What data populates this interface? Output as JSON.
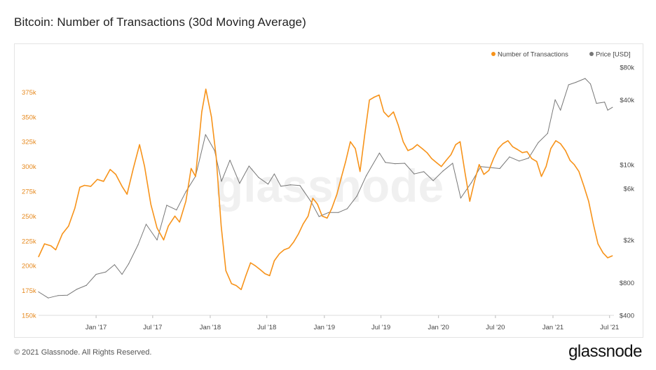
{
  "title": "Bitcoin: Number of Transactions (30d Moving Average)",
  "footer": {
    "copyright": "© 2021 Glassnode. All Rights Reserved.",
    "brand": "glassnode"
  },
  "watermark": "glassnode",
  "colors": {
    "transactions": "#F7931A",
    "price": "#777777",
    "left_axis_text": "#E6891E"
  },
  "chart_data": {
    "type": "line",
    "title": "Bitcoin: Number of Transactions (30d Moving Average)",
    "legend": {
      "position": "top-right",
      "entries": [
        "Number of Transactions",
        "Price [USD]"
      ]
    },
    "x_ticks": [
      "Jan '17",
      "Jul '17",
      "Jan '18",
      "Jul '18",
      "Jan '19",
      "Jul '19",
      "Jan '20",
      "Jul '20",
      "Jan '21",
      "Jul '21"
    ],
    "x_tick_dates": [
      "2017-01-01",
      "2017-07-01",
      "2018-01-01",
      "2018-07-01",
      "2019-01-01",
      "2019-07-01",
      "2020-01-01",
      "2020-07-01",
      "2021-01-01",
      "2021-07-01"
    ],
    "xlim": [
      "2016-07-01",
      "2021-07-15"
    ],
    "left_axis": {
      "scale": "linear",
      "ylim": [
        150000,
        400000
      ],
      "ticks": [
        150000,
        175000,
        200000,
        225000,
        250000,
        275000,
        300000,
        325000,
        350000,
        375000
      ],
      "tick_labels": [
        "150k",
        "175k",
        "200k",
        "225k",
        "250k",
        "275k",
        "300k",
        "325k",
        "350k",
        "375k"
      ]
    },
    "right_axis": {
      "scale": "log",
      "ylim": [
        400,
        80000
      ],
      "ticks": [
        400,
        800,
        2000,
        6000,
        10000,
        40000,
        80000
      ],
      "tick_labels": [
        "$400",
        "$800",
        "$2k",
        "$6k",
        "$10k",
        "$40k",
        "$80k"
      ]
    },
    "series": [
      {
        "name": "Number of Transactions",
        "axis": "left",
        "points": [
          [
            "2016-07-01",
            209000
          ],
          [
            "2016-07-20",
            222000
          ],
          [
            "2016-08-10",
            220000
          ],
          [
            "2016-08-25",
            216000
          ],
          [
            "2016-09-15",
            232000
          ],
          [
            "2016-10-05",
            240000
          ],
          [
            "2016-10-25",
            258000
          ],
          [
            "2016-11-10",
            279000
          ],
          [
            "2016-11-25",
            281000
          ],
          [
            "2016-12-15",
            280000
          ],
          [
            "2017-01-05",
            287000
          ],
          [
            "2017-01-25",
            285000
          ],
          [
            "2017-02-15",
            297000
          ],
          [
            "2017-03-05",
            292000
          ],
          [
            "2017-03-25",
            280000
          ],
          [
            "2017-04-10",
            272000
          ],
          [
            "2017-04-30",
            298000
          ],
          [
            "2017-05-20",
            322000
          ],
          [
            "2017-06-05",
            300000
          ],
          [
            "2017-06-25",
            262000
          ],
          [
            "2017-07-15",
            238000
          ],
          [
            "2017-08-05",
            226000
          ],
          [
            "2017-08-20",
            240000
          ],
          [
            "2017-09-10",
            250000
          ],
          [
            "2017-09-25",
            244000
          ],
          [
            "2017-10-15",
            265000
          ],
          [
            "2017-11-01",
            298000
          ],
          [
            "2017-11-15",
            290000
          ],
          [
            "2017-12-05",
            355000
          ],
          [
            "2017-12-18",
            378000
          ],
          [
            "2018-01-05",
            350000
          ],
          [
            "2018-01-20",
            310000
          ],
          [
            "2018-02-05",
            240000
          ],
          [
            "2018-02-20",
            195000
          ],
          [
            "2018-03-10",
            182000
          ],
          [
            "2018-03-25",
            180000
          ],
          [
            "2018-04-10",
            176000
          ],
          [
            "2018-04-25",
            190000
          ],
          [
            "2018-05-10",
            203000
          ],
          [
            "2018-05-25",
            200000
          ],
          [
            "2018-06-10",
            196000
          ],
          [
            "2018-06-25",
            192000
          ],
          [
            "2018-07-10",
            190000
          ],
          [
            "2018-07-25",
            205000
          ],
          [
            "2018-08-10",
            212000
          ],
          [
            "2018-08-25",
            216000
          ],
          [
            "2018-09-10",
            218000
          ],
          [
            "2018-09-25",
            224000
          ],
          [
            "2018-10-10",
            232000
          ],
          [
            "2018-10-25",
            242000
          ],
          [
            "2018-11-10",
            250000
          ],
          [
            "2018-11-25",
            268000
          ],
          [
            "2018-12-10",
            262000
          ],
          [
            "2018-12-25",
            250000
          ],
          [
            "2019-01-10",
            248000
          ],
          [
            "2019-01-25",
            258000
          ],
          [
            "2019-02-10",
            272000
          ],
          [
            "2019-02-25",
            290000
          ],
          [
            "2019-03-10",
            305000
          ],
          [
            "2019-03-25",
            325000
          ],
          [
            "2019-04-10",
            318000
          ],
          [
            "2019-04-25",
            295000
          ],
          [
            "2019-05-10",
            332000
          ],
          [
            "2019-05-25",
            367000
          ],
          [
            "2019-06-10",
            370000
          ],
          [
            "2019-06-25",
            372000
          ],
          [
            "2019-07-10",
            355000
          ],
          [
            "2019-07-25",
            350000
          ],
          [
            "2019-08-10",
            355000
          ],
          [
            "2019-08-25",
            342000
          ],
          [
            "2019-09-10",
            325000
          ],
          [
            "2019-09-25",
            316000
          ],
          [
            "2019-10-10",
            318000
          ],
          [
            "2019-10-25",
            322000
          ],
          [
            "2019-11-10",
            318000
          ],
          [
            "2019-11-25",
            314000
          ],
          [
            "2019-12-10",
            308000
          ],
          [
            "2019-12-25",
            304000
          ],
          [
            "2020-01-10",
            300000
          ],
          [
            "2020-01-25",
            306000
          ],
          [
            "2020-02-10",
            312000
          ],
          [
            "2020-02-25",
            322000
          ],
          [
            "2020-03-10",
            325000
          ],
          [
            "2020-03-25",
            295000
          ],
          [
            "2020-04-10",
            265000
          ],
          [
            "2020-04-25",
            285000
          ],
          [
            "2020-05-10",
            302000
          ],
          [
            "2020-05-25",
            292000
          ],
          [
            "2020-06-10",
            296000
          ],
          [
            "2020-06-25",
            308000
          ],
          [
            "2020-07-10",
            318000
          ],
          [
            "2020-07-25",
            323000
          ],
          [
            "2020-08-10",
            326000
          ],
          [
            "2020-08-25",
            320000
          ],
          [
            "2020-09-10",
            317000
          ],
          [
            "2020-09-25",
            314000
          ],
          [
            "2020-10-10",
            315000
          ],
          [
            "2020-10-25",
            308000
          ],
          [
            "2020-11-10",
            305000
          ],
          [
            "2020-11-25",
            290000
          ],
          [
            "2020-12-10",
            300000
          ],
          [
            "2020-12-25",
            318000
          ],
          [
            "2021-01-10",
            326000
          ],
          [
            "2021-01-25",
            323000
          ],
          [
            "2021-02-10",
            316000
          ],
          [
            "2021-02-25",
            306000
          ],
          [
            "2021-03-10",
            302000
          ],
          [
            "2021-03-25",
            295000
          ],
          [
            "2021-04-10",
            280000
          ],
          [
            "2021-04-25",
            265000
          ],
          [
            "2021-05-10",
            242000
          ],
          [
            "2021-05-25",
            222000
          ],
          [
            "2021-06-10",
            213000
          ],
          [
            "2021-06-25",
            208000
          ],
          [
            "2021-07-10",
            210000
          ]
        ]
      },
      {
        "name": "Price [USD]",
        "axis": "right",
        "points": [
          [
            "2016-07-01",
            660
          ],
          [
            "2016-08-01",
            580
          ],
          [
            "2016-09-01",
            610
          ],
          [
            "2016-10-01",
            615
          ],
          [
            "2016-11-01",
            700
          ],
          [
            "2016-12-01",
            760
          ],
          [
            "2017-01-01",
            960
          ],
          [
            "2017-02-01",
            1010
          ],
          [
            "2017-03-01",
            1180
          ],
          [
            "2017-03-25",
            960
          ],
          [
            "2017-04-15",
            1200
          ],
          [
            "2017-05-15",
            1800
          ],
          [
            "2017-06-10",
            2800
          ],
          [
            "2017-07-15",
            2000
          ],
          [
            "2017-08-15",
            4200
          ],
          [
            "2017-09-15",
            3800
          ],
          [
            "2017-10-15",
            5600
          ],
          [
            "2017-11-15",
            7800
          ],
          [
            "2017-12-17",
            19000
          ],
          [
            "2018-01-15",
            13500
          ],
          [
            "2018-02-06",
            7000
          ],
          [
            "2018-03-05",
            11000
          ],
          [
            "2018-04-05",
            6700
          ],
          [
            "2018-05-05",
            9700
          ],
          [
            "2018-06-05",
            7600
          ],
          [
            "2018-07-05",
            6600
          ],
          [
            "2018-07-25",
            8200
          ],
          [
            "2018-08-15",
            6300
          ],
          [
            "2018-09-15",
            6500
          ],
          [
            "2018-10-15",
            6400
          ],
          [
            "2018-11-20",
            4500
          ],
          [
            "2018-12-15",
            3300
          ],
          [
            "2019-01-15",
            3600
          ],
          [
            "2019-02-15",
            3600
          ],
          [
            "2019-03-15",
            3900
          ],
          [
            "2019-04-15",
            5100
          ],
          [
            "2019-05-15",
            7900
          ],
          [
            "2019-06-26",
            12800
          ],
          [
            "2019-07-15",
            10500
          ],
          [
            "2019-08-15",
            10200
          ],
          [
            "2019-09-15",
            10300
          ],
          [
            "2019-10-15",
            8200
          ],
          [
            "2019-11-15",
            8600
          ],
          [
            "2019-12-15",
            7100
          ],
          [
            "2020-01-15",
            8700
          ],
          [
            "2020-02-15",
            10300
          ],
          [
            "2020-03-12",
            4900
          ],
          [
            "2020-04-15",
            6800
          ],
          [
            "2020-05-15",
            9600
          ],
          [
            "2020-06-15",
            9400
          ],
          [
            "2020-07-15",
            9200
          ],
          [
            "2020-08-15",
            11800
          ],
          [
            "2020-09-15",
            10800
          ],
          [
            "2020-10-15",
            11500
          ],
          [
            "2020-11-15",
            16000
          ],
          [
            "2020-12-15",
            19500
          ],
          [
            "2021-01-08",
            40000
          ],
          [
            "2021-01-25",
            32000
          ],
          [
            "2021-02-20",
            55000
          ],
          [
            "2021-03-15",
            58000
          ],
          [
            "2021-04-14",
            63000
          ],
          [
            "2021-05-01",
            56000
          ],
          [
            "2021-05-20",
            37000
          ],
          [
            "2021-06-15",
            38000
          ],
          [
            "2021-06-25",
            32000
          ],
          [
            "2021-07-10",
            34000
          ]
        ]
      }
    ]
  }
}
